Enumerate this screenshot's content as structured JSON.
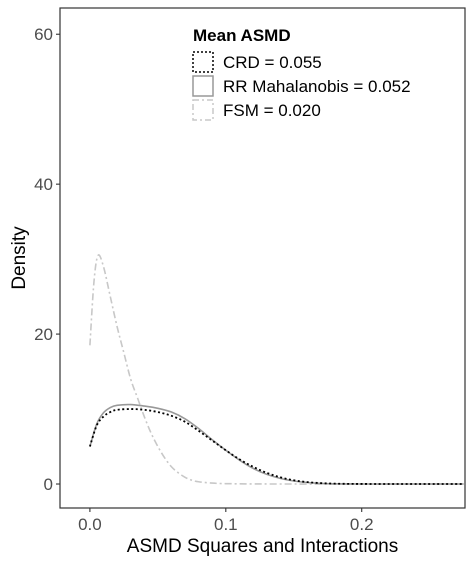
{
  "chart_data": {
    "type": "density",
    "xlabel": "ASMD Squares and Interactions",
    "ylabel": "Density",
    "xlim": [
      -0.022,
      0.276
    ],
    "ylim": [
      -3.2,
      63.5
    ],
    "x_ticks": [
      0.0,
      0.1,
      0.2
    ],
    "x_tick_labels": [
      "0.0",
      "0.1",
      "0.2"
    ],
    "y_ticks": [
      0,
      20,
      40,
      60
    ],
    "y_tick_labels": [
      "0",
      "20",
      "40",
      "60"
    ],
    "grid": false,
    "legend": {
      "title": "Mean ASMD",
      "position": "top-right-inside",
      "entries": [
        {
          "label": "CRD =  0.055",
          "color": "#000000",
          "dash": "dotted"
        },
        {
          "label": "RR Mahalanobis =  0.052",
          "color": "#999999",
          "dash": "solid"
        },
        {
          "label": "FSM =  0.020",
          "color": "#c8c8c8",
          "dash": "dashdot"
        }
      ]
    },
    "series": [
      {
        "label_key": "CRD",
        "color": "#000000",
        "dash": "dotted",
        "x": [
          0.0,
          0.005,
          0.01,
          0.015,
          0.02,
          0.03,
          0.04,
          0.05,
          0.06,
          0.07,
          0.08,
          0.09,
          0.1,
          0.11,
          0.12,
          0.13,
          0.14,
          0.15,
          0.16,
          0.17,
          0.18,
          0.19,
          0.2,
          0.22,
          0.24,
          0.26,
          0.275
        ],
        "y": [
          5.0,
          7.8,
          9.0,
          9.6,
          9.9,
          10.0,
          9.9,
          9.6,
          9.1,
          8.3,
          7.1,
          5.8,
          4.5,
          3.3,
          2.3,
          1.5,
          0.9,
          0.5,
          0.25,
          0.12,
          0.05,
          0.02,
          0.01,
          0.0,
          0.0,
          0.0,
          0.0
        ]
      },
      {
        "label_key": "RR Mahalanobis",
        "color": "#999999",
        "dash": "solid",
        "x": [
          0.0,
          0.005,
          0.01,
          0.015,
          0.02,
          0.03,
          0.04,
          0.05,
          0.06,
          0.07,
          0.08,
          0.09,
          0.1,
          0.11,
          0.12,
          0.13,
          0.14,
          0.15,
          0.16,
          0.17,
          0.18,
          0.19,
          0.2,
          0.22,
          0.24,
          0.26,
          0.275
        ],
        "y": [
          5.0,
          8.0,
          9.5,
          10.2,
          10.5,
          10.6,
          10.4,
          10.1,
          9.6,
          8.7,
          7.4,
          5.9,
          4.5,
          3.2,
          2.1,
          1.3,
          0.75,
          0.4,
          0.2,
          0.08,
          0.03,
          0.01,
          0.0,
          0.0,
          0.0,
          0.0,
          0.0
        ]
      },
      {
        "label_key": "FSM",
        "color": "#c8c8c8",
        "dash": "dashdot",
        "x": [
          0.0,
          0.003,
          0.006,
          0.01,
          0.015,
          0.02,
          0.025,
          0.03,
          0.035,
          0.04,
          0.045,
          0.05,
          0.055,
          0.06,
          0.065,
          0.07,
          0.075,
          0.08,
          0.09,
          0.1,
          0.12,
          0.15,
          0.2,
          0.275
        ],
        "y": [
          18.5,
          27.0,
          30.5,
          29.0,
          25.0,
          21.0,
          17.5,
          14.0,
          11.5,
          9.0,
          6.8,
          5.0,
          3.5,
          2.3,
          1.5,
          0.9,
          0.5,
          0.3,
          0.12,
          0.05,
          0.01,
          0.0,
          0.0,
          0.0
        ]
      }
    ]
  }
}
